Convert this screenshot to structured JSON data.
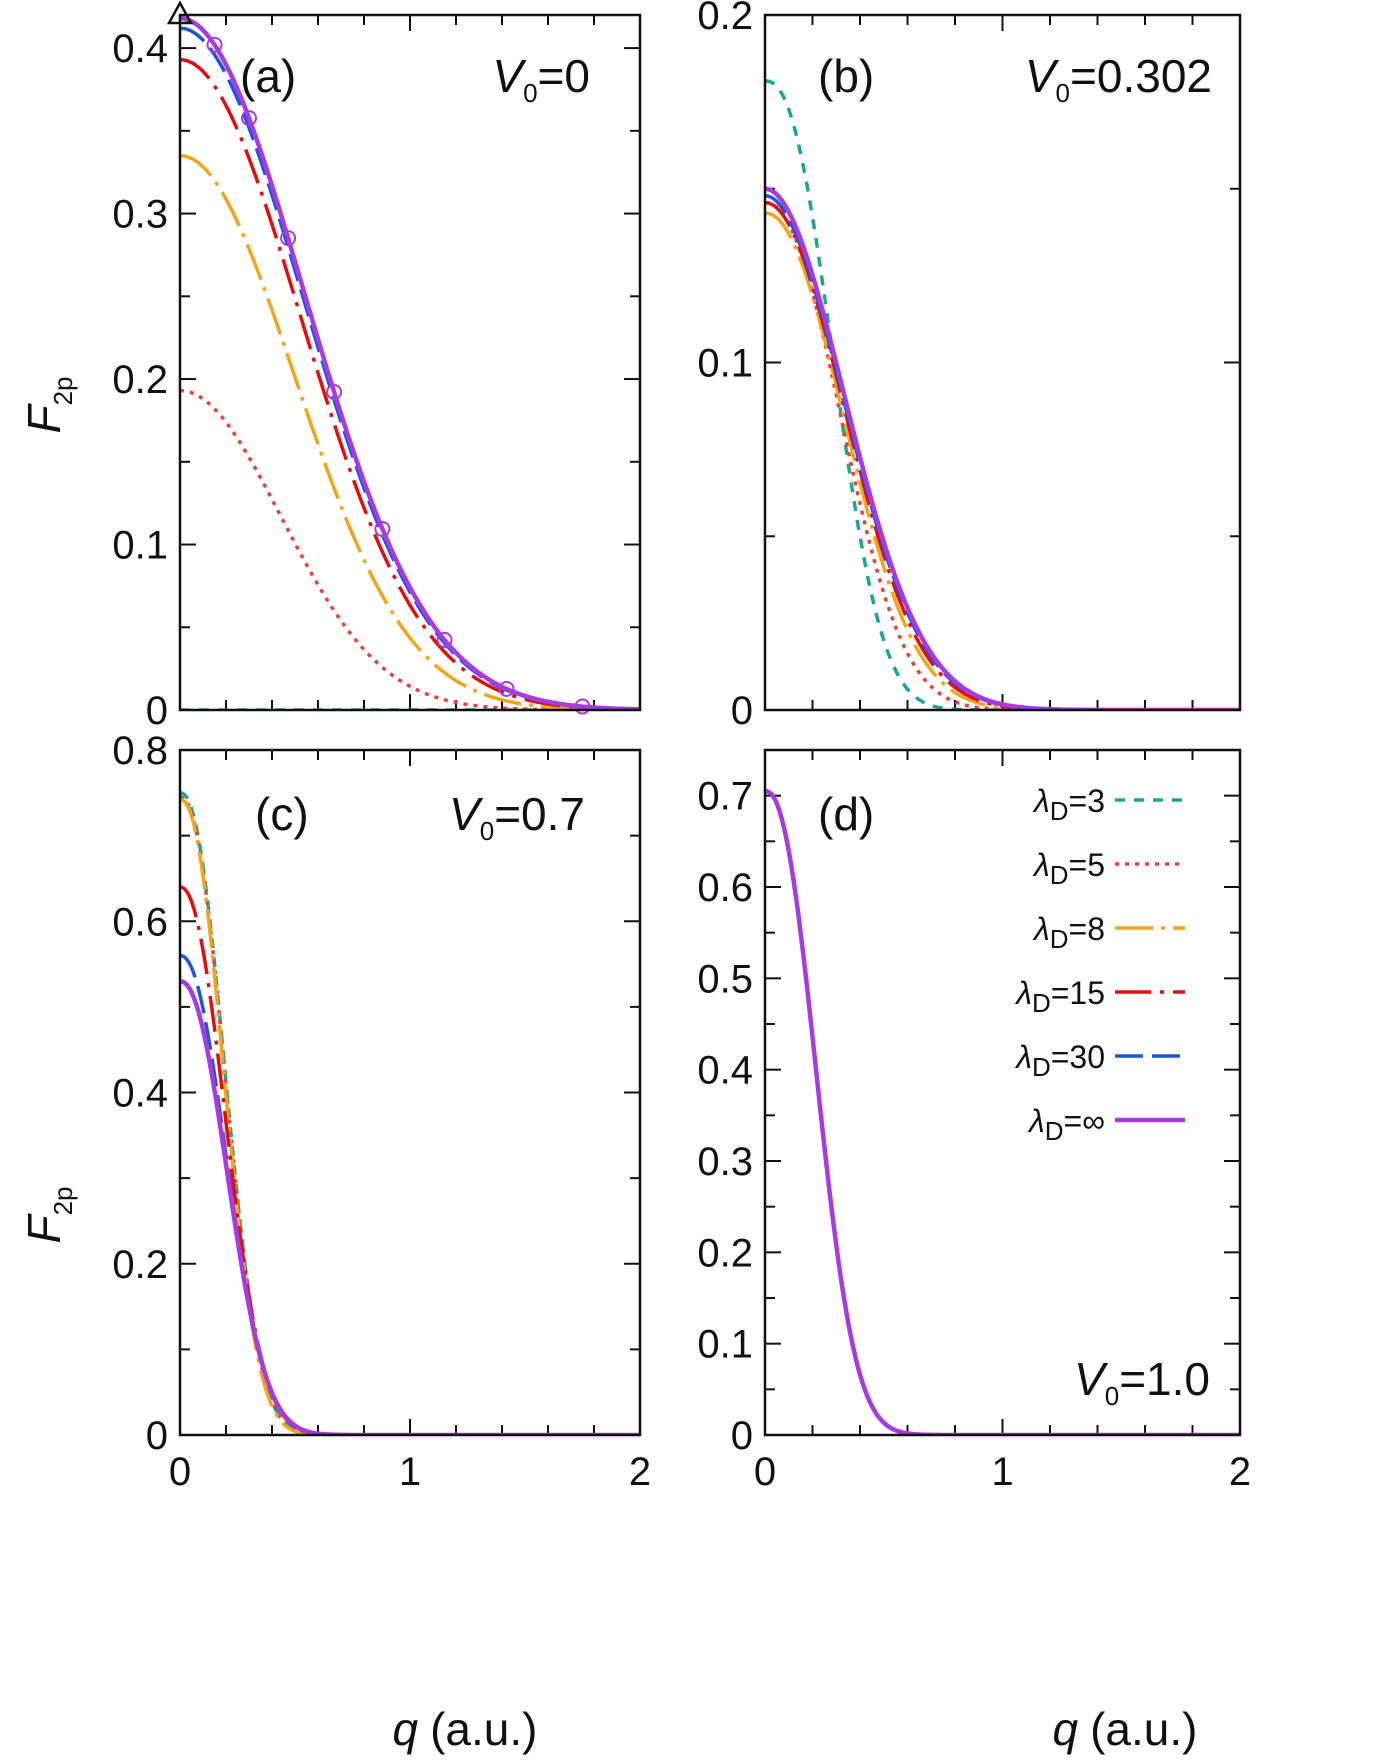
{
  "figure": {
    "y_axis_label": "F",
    "y_axis_sub": "2p",
    "x_axis_label_var": "q",
    "x_axis_label_unit": "(a.u.)",
    "legend_prefix": "λ",
    "legend_sub": "D"
  },
  "colors": {
    "l3": "#1aa894",
    "l5": "#e8423a",
    "l8": "#f2a51a",
    "l15": "#e01010",
    "l30": "#1f55d9",
    "linf": "#a83be0"
  },
  "legend": [
    {
      "key": "l3",
      "label": "=3"
    },
    {
      "key": "l5",
      "label": "=5"
    },
    {
      "key": "l8",
      "label": "=8"
    },
    {
      "key": "l15",
      "label": "=15"
    },
    {
      "key": "l30",
      "label": "=30"
    },
    {
      "key": "linf",
      "label": "=∞"
    }
  ],
  "chart_data": [
    {
      "type": "line",
      "panel": "(a)",
      "v0_var": "V",
      "v0_sub": "0",
      "v0_value": "=0",
      "xlabel": "q (a.u.)",
      "ylabel": "F2p",
      "xlim": [
        0,
        2
      ],
      "ylim": [
        0,
        0.42
      ],
      "yticks": [
        0,
        0.1,
        0.2,
        0.3,
        0.4
      ],
      "ytick_labels": [
        "0",
        "0.1",
        "0.2",
        "0.3",
        "0.4"
      ],
      "xticks": [
        0,
        1,
        2
      ],
      "xtick_labels": [
        "0",
        "1",
        "2"
      ],
      "series": [
        {
          "name": "λD=3",
          "key": "l3",
          "dash": "10,9",
          "A": 0.0,
          "s": 1.0,
          "n": 2
        },
        {
          "name": "λD=5",
          "key": "l5",
          "dash": "4,6",
          "A": 0.193,
          "s": 0.62,
          "n": 2
        },
        {
          "name": "λD=8",
          "key": "l8",
          "dash": "38,8,4,8",
          "A": 0.335,
          "s": 0.7,
          "n": 2
        },
        {
          "name": "λD=15",
          "key": "l15",
          "dash": "36,9,4,9",
          "A": 0.393,
          "s": 0.74,
          "n": 2
        },
        {
          "name": "λD=30",
          "key": "l30",
          "dash": "28,9",
          "A": 0.412,
          "s": 0.755,
          "n": 2
        },
        {
          "name": "λD=∞",
          "key": "linf",
          "dash": "",
          "A": 0.418,
          "s": 0.76,
          "n": 2
        }
      ],
      "markers": {
        "circles_series": "λD=∞",
        "circles_x": [
          0.15,
          0.3,
          0.47,
          0.67,
          0.88,
          1.15,
          1.42,
          1.75
        ],
        "triangle_x": 0.0,
        "triangle_y": 0.42
      }
    },
    {
      "type": "line",
      "panel": "(b)",
      "v0_var": "V",
      "v0_sub": "0",
      "v0_value": "=0.302",
      "xlabel": "q (a.u.)",
      "ylabel": "F2p",
      "xlim": [
        0,
        2
      ],
      "ylim": [
        0,
        0.2
      ],
      "yticks": [
        0,
        0.1,
        0.2
      ],
      "ytick_labels": [
        "0",
        "0.1",
        "0.2"
      ],
      "minor_yticks": [
        0.05,
        0.15
      ],
      "xticks": [
        0,
        1,
        2
      ],
      "xtick_labels": [
        "0",
        "1",
        "2"
      ],
      "series": [
        {
          "name": "λD=3",
          "key": "l3",
          "dash": "10,9",
          "A": 0.181,
          "s": 0.36,
          "n": 2.4
        },
        {
          "name": "λD=5",
          "key": "l5",
          "dash": "4,6",
          "A": 0.146,
          "s": 0.42,
          "n": 2.2
        },
        {
          "name": "λD=8",
          "key": "l8",
          "dash": "38,8,4,8",
          "A": 0.143,
          "s": 0.45,
          "n": 2.1
        },
        {
          "name": "λD=15",
          "key": "l15",
          "dash": "36,9,4,9",
          "A": 0.146,
          "s": 0.46,
          "n": 2.05
        },
        {
          "name": "λD=30",
          "key": "l30",
          "dash": "28,9",
          "A": 0.148,
          "s": 0.465,
          "n": 2.0
        },
        {
          "name": "λD=∞",
          "key": "linf",
          "dash": "",
          "A": 0.15,
          "s": 0.47,
          "n": 2.0
        }
      ]
    },
    {
      "type": "line",
      "panel": "(c)",
      "v0_var": "V",
      "v0_sub": "0",
      "v0_value": "=0.7",
      "xlabel": "q (a.u.)",
      "ylabel": "F2p",
      "xlim": [
        0,
        2
      ],
      "ylim": [
        0,
        0.8
      ],
      "yticks": [
        0,
        0.2,
        0.4,
        0.6,
        0.8
      ],
      "ytick_labels": [
        "0",
        "0.2",
        "0.4",
        "0.6",
        "0.8"
      ],
      "xticks": [
        0,
        1,
        2
      ],
      "xtick_labels": [
        "0",
        "1",
        "2"
      ],
      "series": [
        {
          "name": "λD=3",
          "key": "l3",
          "dash": "10,9",
          "A": 0.75,
          "s": 0.25,
          "n": 2.3
        },
        {
          "name": "λD=5",
          "key": "l5",
          "dash": "4,6",
          "A": 0.745,
          "s": 0.25,
          "n": 2.3
        },
        {
          "name": "λD=8",
          "key": "l8",
          "dash": "38,8,4,8",
          "A": 0.742,
          "s": 0.245,
          "n": 2.3
        },
        {
          "name": "λD=15",
          "key": "l15",
          "dash": "36,9,4,9",
          "A": 0.64,
          "s": 0.26,
          "n": 2.2
        },
        {
          "name": "λD=30",
          "key": "l30",
          "dash": "28,9",
          "A": 0.56,
          "s": 0.265,
          "n": 2.2
        },
        {
          "name": "λD=∞",
          "key": "linf",
          "dash": "",
          "A": 0.53,
          "s": 0.27,
          "n": 2.2
        }
      ]
    },
    {
      "type": "line",
      "panel": "(d)",
      "v0_var": "V",
      "v0_sub": "0",
      "v0_value": "=1.0",
      "xlabel": "q (a.u.)",
      "ylabel": "F2p",
      "xlim": [
        0,
        2
      ],
      "ylim": [
        0,
        0.75
      ],
      "yticks": [
        0,
        0.1,
        0.2,
        0.3,
        0.4,
        0.5,
        0.6,
        0.7
      ],
      "ytick_labels": [
        "0",
        "0.1",
        "0.2",
        "0.3",
        "0.4",
        "0.5",
        "0.6",
        "0.7"
      ],
      "xticks": [
        0,
        1,
        2
      ],
      "xtick_labels": [
        "0",
        "1",
        "2"
      ],
      "series": [
        {
          "name": "λD=∞",
          "key": "linf",
          "dash": "",
          "A": 0.705,
          "s": 0.275,
          "n": 2.3
        }
      ]
    }
  ]
}
